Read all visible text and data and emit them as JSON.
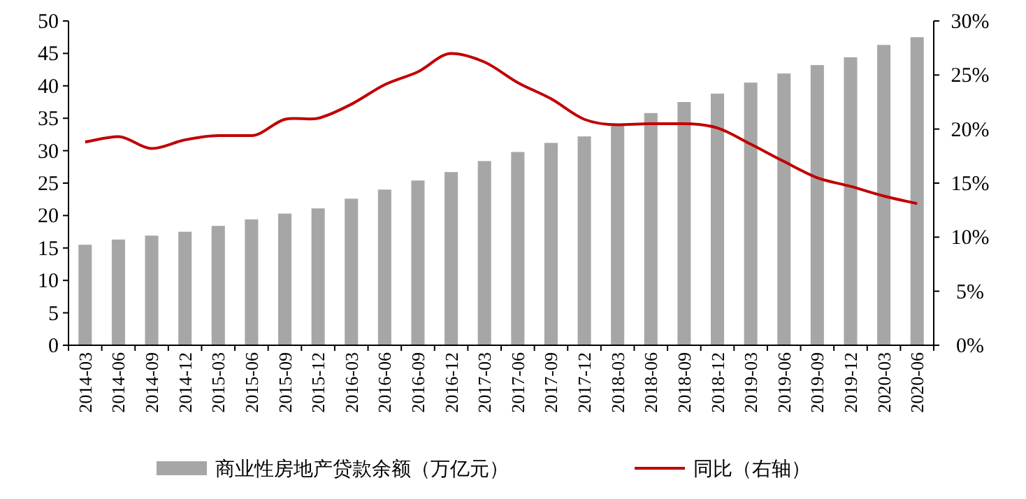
{
  "chart_data": {
    "type": "bar",
    "categories": [
      "2014-03",
      "2014-06",
      "2014-09",
      "2014-12",
      "2015-03",
      "2015-06",
      "2015-09",
      "2015-12",
      "2016-03",
      "2016-06",
      "2016-09",
      "2016-12",
      "2017-03",
      "2017-06",
      "2017-09",
      "2017-12",
      "2018-03",
      "2018-06",
      "2018-09",
      "2018-12",
      "2019-03",
      "2019-06",
      "2019-09",
      "2019-12",
      "2020-03",
      "2020-06"
    ],
    "series": [
      {
        "name": "商业性房地产贷款余额（万亿元）",
        "color": "#a6a6a6",
        "values": [
          15.5,
          16.3,
          16.9,
          17.5,
          18.4,
          19.4,
          20.3,
          21.1,
          22.6,
          24.0,
          25.4,
          26.7,
          28.4,
          29.8,
          31.2,
          32.2,
          34.1,
          35.8,
          37.5,
          38.8,
          40.5,
          41.9,
          43.2,
          44.4,
          46.3,
          47.5
        ]
      },
      {
        "name": "同比（右轴）",
        "type": "line",
        "axis": "y2",
        "color": "#c00000",
        "values": [
          18.8,
          19.3,
          18.2,
          19.0,
          19.4,
          19.4,
          20.9,
          21.0,
          22.3,
          24.1,
          25.3,
          27.0,
          26.2,
          24.3,
          22.8,
          20.9,
          20.4,
          20.5,
          20.5,
          20.1,
          18.6,
          17.0,
          15.5,
          14.7,
          13.8,
          13.1
        ]
      }
    ],
    "ylim": [
      0,
      50
    ],
    "yticks": [
      0,
      5,
      10,
      15,
      20,
      25,
      30,
      35,
      40,
      45,
      50
    ],
    "y2lim": [
      0,
      30
    ],
    "y2ticks": [
      {
        "value": 0,
        "label": "0%"
      },
      {
        "value": 5,
        "label": "5%"
      },
      {
        "value": 10,
        "label": "10%"
      },
      {
        "value": 15,
        "label": "15%"
      },
      {
        "value": 20,
        "label": "20%"
      },
      {
        "value": 25,
        "label": "25%"
      },
      {
        "value": 30,
        "label": "30%"
      }
    ],
    "grid": false,
    "legend": "bottom",
    "marker": "none",
    "line_style": "solid"
  }
}
